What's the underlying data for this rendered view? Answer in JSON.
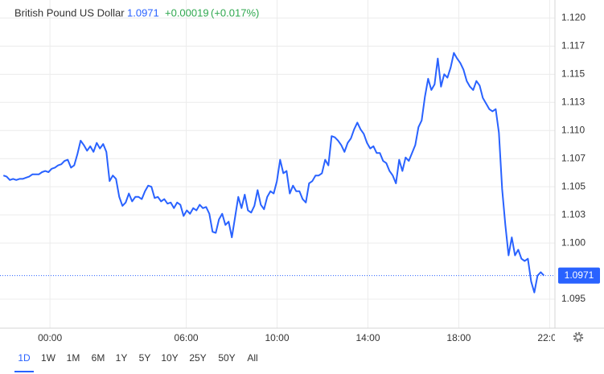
{
  "chart_data": {
    "type": "line",
    "title": "British Pound US Dollar",
    "last_price": 1.0971,
    "change": {
      "value": 0.00019,
      "label": "+0.00019"
    },
    "change_pct": {
      "value": 0.017,
      "label": "(+0.017%)"
    },
    "color": "#2962ff",
    "grid": true,
    "x": [
      -123,
      -114.5,
      -106,
      -97.5,
      -89,
      -80.5,
      -72,
      -63.5,
      -55,
      -46.5,
      -38,
      -29.5,
      -21,
      -12.5,
      -4,
      4.5,
      13,
      21.5,
      30,
      38.5,
      47,
      55.5,
      64,
      72.5,
      81,
      89.5,
      98,
      106.5,
      115,
      123.5,
      132,
      140.5,
      149,
      157.5,
      166,
      174.5,
      183,
      191.5,
      200,
      208.5,
      217,
      225.5,
      234,
      242.5,
      251,
      259.5,
      268,
      276.5,
      285,
      293.5,
      302,
      310.5,
      319,
      327.5,
      336,
      344.5,
      353,
      361.5,
      370,
      378.5,
      387,
      395.5,
      404,
      412.5,
      421,
      429.5,
      438,
      446.5,
      455,
      463.5,
      472,
      480.5,
      489,
      497.5,
      506,
      514.5,
      523,
      531.5,
      540,
      548.5,
      557,
      565.5,
      574,
      582.5,
      591,
      599.5,
      608,
      616.5,
      625,
      633.5,
      642,
      650.5,
      659,
      667.5,
      676,
      684.5,
      693,
      701.5,
      710,
      718.5,
      727,
      735.5,
      744,
      752.5,
      761,
      769.5,
      778,
      786.5,
      795,
      803.5,
      812,
      820.5,
      829,
      837.5,
      846,
      854.5,
      863,
      871.5,
      880,
      888.5,
      897,
      905.5,
      914,
      922.5,
      931,
      939.5,
      948,
      956.5,
      965,
      973.5,
      982,
      990.5,
      999,
      1007.5,
      1016,
      1024.5,
      1033,
      1041.5,
      1050,
      1058.5,
      1067,
      1075.5,
      1084,
      1092.5,
      1101,
      1109.5,
      1118,
      1126.5,
      1135,
      1143.5,
      1152,
      1160.5,
      1169,
      1177.5,
      1186,
      1194.5,
      1203,
      1211.5,
      1220,
      1228.5,
      1237,
      1245.5,
      1254,
      1262.5,
      1271,
      1279.5,
      1288,
      1296.5,
      1305
    ],
    "values": [
      1.106,
      1.1059,
      1.1056,
      1.1057,
      1.1056,
      1.1057,
      1.1057,
      1.1058,
      1.1059,
      1.1061,
      1.1061,
      1.1061,
      1.1063,
      1.1064,
      1.1063,
      1.1066,
      1.1067,
      1.1069,
      1.107,
      1.1073,
      1.1074,
      1.1067,
      1.1069,
      1.1079,
      1.1091,
      1.1087,
      1.1082,
      1.1086,
      1.1081,
      1.1089,
      1.1084,
      1.1088,
      1.1081,
      1.1055,
      1.106,
      1.1057,
      1.1041,
      1.1033,
      1.1036,
      1.1044,
      1.1037,
      1.1041,
      1.1041,
      1.1039,
      1.1046,
      1.1051,
      1.105,
      1.104,
      1.1041,
      1.1037,
      1.1039,
      1.1035,
      1.1036,
      1.1031,
      1.1036,
      1.1034,
      1.1024,
      1.1029,
      1.1026,
      1.1031,
      1.1029,
      1.1034,
      1.1031,
      1.1032,
      1.1026,
      1.101,
      1.1009,
      1.1021,
      1.1026,
      1.1016,
      1.1019,
      1.1005,
      1.1023,
      1.1041,
      1.1031,
      1.1043,
      1.1029,
      1.1027,
      1.1033,
      1.1047,
      1.1034,
      1.103,
      1.1041,
      1.1046,
      1.1044,
      1.1055,
      1.1074,
      1.1062,
      1.1064,
      1.1044,
      1.1051,
      1.1046,
      1.1046,
      1.1039,
      1.1036,
      1.1053,
      1.1055,
      1.106,
      1.106,
      1.1062,
      1.1074,
      1.1069,
      1.1095,
      1.1094,
      1.1091,
      1.1087,
      1.1081,
      1.1089,
      1.1093,
      1.1101,
      1.1107,
      1.1101,
      1.1097,
      1.1089,
      1.1084,
      1.1086,
      1.108,
      1.108,
      1.1073,
      1.1071,
      1.1064,
      1.106,
      1.1053,
      1.1074,
      1.1064,
      1.1076,
      1.1073,
      1.108,
      1.1087,
      1.1103,
      1.1109,
      1.113,
      1.1146,
      1.1136,
      1.1141,
      1.1164,
      1.1139,
      1.115,
      1.1147,
      1.1156,
      1.1169,
      1.1164,
      1.116,
      1.1154,
      1.1144,
      1.1139,
      1.1136,
      1.1144,
      1.114,
      1.1129,
      1.1124,
      1.1119,
      1.1117,
      1.1119,
      1.1098,
      1.1048,
      1.1016,
      1.0989,
      1.1005,
      1.0989,
      1.0994,
      1.0986,
      1.0984,
      1.0986,
      1.0966,
      1.0956,
      1.0971,
      1.0974,
      1.0971
    ],
    "xlim": [
      -132,
      1334
    ],
    "xticks": [
      {
        "value": 0,
        "label": "00:00"
      },
      {
        "value": 360,
        "label": "06:00"
      },
      {
        "value": 600,
        "label": "10:00"
      },
      {
        "value": 840,
        "label": "14:00"
      },
      {
        "value": 1080,
        "label": "18:00"
      },
      {
        "value": 1320,
        "label": "22:00"
      }
    ],
    "ylim": [
      1.09243,
      1.1216
    ],
    "yticks": [
      {
        "value": 1.12,
        "label": "1.120"
      },
      {
        "value": 1.1175,
        "label": "1.117"
      },
      1.115,
      {
        "value": 1.1125,
        "label": "1.113"
      },
      {
        "value": 1.11,
        "label": "1.110"
      },
      {
        "value": 1.1075,
        "label": "1.107"
      },
      1.105,
      {
        "value": 1.1025,
        "label": "1.103"
      },
      {
        "value": 1.1,
        "label": "1.100"
      },
      1.095
    ],
    "ranges": [
      "1D",
      "1W",
      "1M",
      "6M",
      "1Y",
      "5Y",
      "10Y",
      "25Y",
      "50Y",
      "All"
    ],
    "active_range": "1D"
  }
}
